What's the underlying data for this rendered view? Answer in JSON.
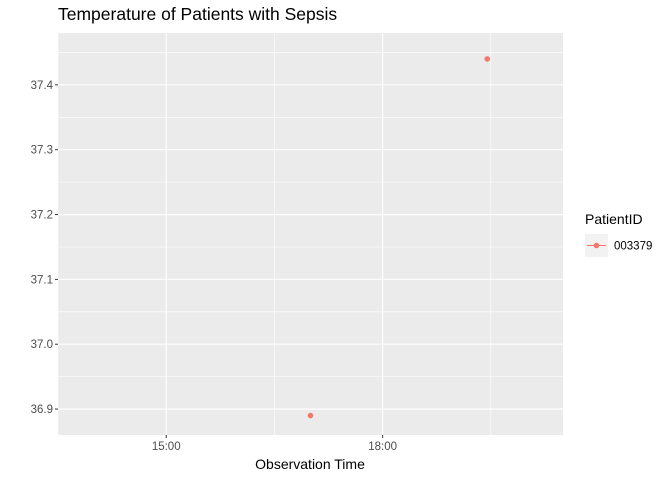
{
  "chart_data": {
    "type": "line",
    "title": "Temperature of Patients with Sepsis",
    "xlabel": "Observation Time",
    "ylabel": "",
    "x_ticks": [
      "15:00",
      "18:00"
    ],
    "y_ticks": [
      "36.9",
      "37.0",
      "37.1",
      "37.2",
      "37.3",
      "37.4"
    ],
    "legend": {
      "title": "PatientID",
      "position": "right",
      "entries": [
        "003379"
      ]
    },
    "series": [
      {
        "name": "003379",
        "color": "#F8766D",
        "points": [
          {
            "x": "17:00",
            "y": 36.89
          },
          {
            "x": "19:27",
            "y": 37.44
          }
        ]
      }
    ],
    "x_range": [
      "13:30",
      "20:30"
    ],
    "ylim": [
      36.86,
      37.48
    ],
    "grid": true,
    "panel_background": "#EBEBEB"
  }
}
